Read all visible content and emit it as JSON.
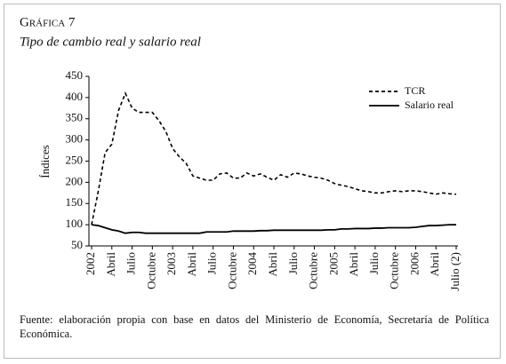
{
  "chart_data": {
    "type": "line",
    "title": "Gráfica 7",
    "subtitle": "Tipo de cambio real y salario real",
    "y_label": "Índices",
    "note": "Fuente: elaboración propia con base en datos del Ministerio de Economía, Secretaría de Política Económica.",
    "categories": [
      "2002",
      null,
      null,
      "Abril",
      null,
      null,
      "Julio",
      null,
      null,
      "Octubre",
      null,
      null,
      "2003",
      null,
      null,
      "Abril",
      null,
      null,
      "Julio",
      null,
      null,
      "Octubre",
      null,
      null,
      "2004",
      null,
      null,
      "Abril",
      null,
      null,
      "Julio",
      null,
      null,
      "Octubre",
      null,
      null,
      "2005",
      null,
      null,
      "Abril",
      null,
      null,
      "Julio",
      null,
      null,
      "Octubre",
      null,
      null,
      "2006",
      null,
      null,
      "Abril",
      null,
      null,
      "Julio (2)"
    ],
    "series": [
      {
        "name": "TCR",
        "color": "#000000",
        "dash": true,
        "values": [
          100,
          180,
          270,
          290,
          370,
          410,
          375,
          365,
          365,
          365,
          345,
          320,
          280,
          260,
          245,
          215,
          210,
          205,
          205,
          220,
          222,
          210,
          210,
          222,
          215,
          220,
          212,
          205,
          218,
          212,
          222,
          220,
          215,
          212,
          210,
          205,
          197,
          193,
          190,
          185,
          180,
          178,
          175,
          175,
          178,
          180,
          178,
          180,
          180,
          178,
          175,
          172,
          175,
          173,
          172
        ]
      },
      {
        "name": "Salario real",
        "color": "#000000",
        "dash": false,
        "values": [
          100,
          98,
          93,
          88,
          85,
          80,
          82,
          82,
          80,
          80,
          80,
          80,
          80,
          80,
          80,
          80,
          80,
          83,
          83,
          83,
          83,
          85,
          85,
          85,
          85,
          86,
          86,
          87,
          87,
          87,
          87,
          87,
          87,
          87,
          87,
          88,
          88,
          90,
          90,
          91,
          91,
          91,
          92,
          92,
          93,
          93,
          93,
          93,
          94,
          96,
          98,
          98,
          99,
          100,
          100
        ]
      }
    ],
    "ylim": [
      50,
      450
    ],
    "yticks": [
      50,
      100,
      150,
      200,
      250,
      300,
      350,
      400,
      450
    ],
    "legend": "top-right"
  }
}
